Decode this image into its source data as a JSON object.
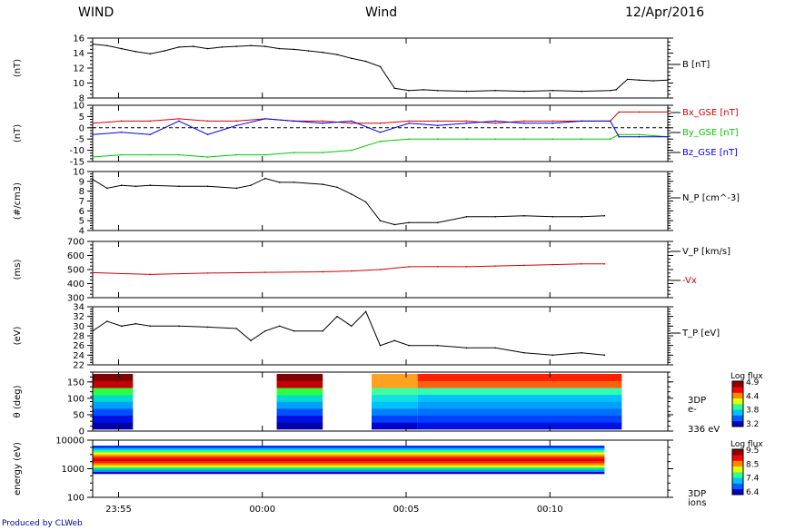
{
  "header": {
    "left_title": "WIND",
    "center_title": "Wind",
    "date": "12/Apr/2016"
  },
  "footer": {
    "credit": "Produced by CLWeb"
  },
  "time_axis": {
    "ticks": [
      {
        "t": 0,
        "label": "23:55"
      },
      {
        "t": 5,
        "label": "00:00"
      },
      {
        "t": 10,
        "label": "00:05"
      },
      {
        "t": 15,
        "label": "00:10"
      }
    ]
  },
  "chart_data": [
    {
      "type": "line",
      "panel": "B",
      "ylabel": "(nT)",
      "legend": [
        "B [nT]"
      ],
      "ylim": [
        8,
        16
      ],
      "yticks": [
        8,
        10,
        12,
        14,
        16
      ],
      "series": [
        {
          "name": "B [nT]",
          "color": "#000000",
          "x": [
            0,
            0.5,
            1,
            1.5,
            2,
            2.5,
            3,
            3.5,
            4,
            4.5,
            5,
            5.5,
            6,
            6.5,
            7,
            7.5,
            8,
            8.5,
            9,
            9.5,
            10,
            10.5,
            11,
            11.5,
            12,
            13,
            14,
            15,
            16,
            17,
            18,
            18.2,
            18.6,
            19,
            19.5,
            20
          ],
          "values": [
            15.2,
            15.0,
            14.6,
            14.2,
            13.9,
            14.3,
            14.8,
            14.9,
            14.6,
            14.8,
            14.9,
            15.0,
            14.9,
            14.6,
            14.5,
            14.3,
            14.1,
            13.8,
            13.3,
            12.9,
            12.2,
            9.3,
            9.0,
            9.1,
            9.0,
            8.9,
            9.0,
            8.9,
            9.0,
            8.9,
            9.0,
            9.1,
            10.5,
            10.4,
            10.3,
            10.4
          ]
        }
      ]
    },
    {
      "type": "line",
      "panel": "B_GSE",
      "ylabel": "(nT)",
      "legend": [
        "Bx_GSE [nT]",
        "By_GSE [nT]",
        "Bz_GSE [nT]"
      ],
      "ylim": [
        -15,
        10
      ],
      "yticks": [
        -15,
        -10,
        -5,
        0,
        5,
        10
      ],
      "series": [
        {
          "name": "Bx_GSE [nT]",
          "color": "#d40000",
          "x": [
            0,
            1,
            2,
            3,
            4,
            5,
            6,
            7,
            8,
            9,
            10,
            11,
            12,
            13,
            14,
            15,
            16,
            17,
            18,
            18.3,
            19,
            20
          ],
          "values": [
            2,
            3,
            3,
            4,
            3,
            3,
            4,
            3,
            3,
            2,
            2,
            3,
            3,
            3,
            2,
            3,
            3,
            3,
            3,
            7,
            7,
            7
          ]
        },
        {
          "name": "By_GSE [nT]",
          "color": "#00c800",
          "x": [
            0,
            1,
            2,
            3,
            4,
            5,
            6,
            7,
            8,
            9,
            10,
            11,
            12,
            13,
            14,
            15,
            16,
            17,
            18,
            18.3,
            19,
            20
          ],
          "values": [
            -13,
            -12,
            -12,
            -12,
            -13,
            -12,
            -12,
            -11,
            -11,
            -10,
            -6,
            -5,
            -5,
            -5,
            -5,
            -5,
            -5,
            -5,
            -5,
            -3,
            -3,
            -4
          ]
        },
        {
          "name": "Bz_GSE [nT]",
          "color": "#0000e0",
          "x": [
            0,
            1,
            2,
            3,
            4,
            5,
            6,
            7,
            8,
            9,
            10,
            11,
            12,
            13,
            14,
            15,
            16,
            17,
            18,
            18.3,
            19,
            20
          ],
          "values": [
            -3,
            -2,
            -3,
            3,
            -3,
            1,
            4,
            3,
            2,
            3,
            -2,
            2,
            1,
            2,
            3,
            2,
            2,
            3,
            3,
            -4,
            -4,
            -4
          ]
        }
      ]
    },
    {
      "type": "line",
      "panel": "N_P",
      "ylabel": "(#/cm3)",
      "legend": [
        "N_P [cm^-3]"
      ],
      "ylim": [
        4,
        10
      ],
      "yticks": [
        4,
        5,
        6,
        7,
        8,
        9,
        10
      ],
      "series": [
        {
          "name": "N_P [cm^-3]",
          "color": "#000000",
          "x": [
            0,
            0.5,
            1,
            1.5,
            2,
            3,
            4,
            5,
            5.5,
            6,
            6.5,
            7,
            8,
            8.5,
            9,
            9.5,
            10,
            10.5,
            11,
            12,
            13,
            14,
            15,
            16,
            17,
            17.8
          ],
          "values": [
            9.2,
            8.3,
            8.6,
            8.5,
            8.6,
            8.5,
            8.5,
            8.3,
            8.6,
            9.3,
            8.9,
            8.9,
            8.7,
            8.4,
            7.7,
            6.9,
            5.0,
            4.6,
            4.8,
            4.8,
            5.4,
            5.4,
            5.5,
            5.4,
            5.4,
            5.5
          ]
        }
      ]
    },
    {
      "type": "line",
      "panel": "V_P",
      "ylabel": "(ms)",
      "legend": [
        "V_P [km/s]",
        "-Vx"
      ],
      "ylim": [
        300,
        700
      ],
      "yticks": [
        300,
        400,
        500,
        600,
        700
      ],
      "series": [
        {
          "name": "-Vx",
          "color": "#d40000",
          "x": [
            0,
            2,
            4,
            6,
            8,
            9,
            10,
            11,
            12,
            13,
            14,
            15,
            16,
            17,
            17.8
          ],
          "values": [
            478,
            465,
            475,
            480,
            484,
            490,
            500,
            520,
            521,
            520,
            525,
            530,
            535,
            540,
            540
          ]
        }
      ]
    },
    {
      "type": "line",
      "panel": "T_P",
      "ylabel": "(eV)",
      "legend": [
        "T_P [eV]"
      ],
      "ylim": [
        22,
        34
      ],
      "yticks": [
        22,
        24,
        26,
        28,
        30,
        32,
        34
      ],
      "series": [
        {
          "name": "T_P [eV]",
          "color": "#000000",
          "x": [
            0,
            0.5,
            1,
            1.5,
            2,
            3,
            4,
            5,
            5.5,
            6,
            6.5,
            7,
            8,
            8.5,
            9,
            9.5,
            10,
            10.5,
            11,
            12,
            13,
            14,
            15,
            16,
            17,
            17.8
          ],
          "values": [
            29,
            31,
            30,
            30.5,
            30,
            30,
            29.8,
            29.5,
            27,
            29,
            30,
            29,
            29,
            32,
            30,
            33,
            26,
            27,
            26,
            26,
            25.5,
            25.5,
            24.5,
            24,
            24.5,
            24
          ]
        }
      ]
    },
    {
      "type": "heatmap",
      "panel": "3DP e-",
      "ylabel": "θ (deg)",
      "ylim": [
        0,
        180
      ],
      "yticks": [
        0,
        50,
        100,
        150
      ],
      "right_labels": [
        "3DP",
        "e-",
        "336 eV"
      ],
      "colorbar": {
        "title": "Log flux",
        "ticks": [
          "4.9",
          "4.4",
          "3.8",
          "3.2"
        ]
      },
      "bins": [
        {
          "x0": 0,
          "x1": 1.4,
          "colors": [
            "#0000aa",
            "#0010e0",
            "#0050ff",
            "#00a0ff",
            "#00ddcc",
            "#30ff40",
            "#c40000",
            "#800000"
          ]
        },
        {
          "x0": 6.4,
          "x1": 8.0,
          "colors": [
            "#0000aa",
            "#0010e0",
            "#0050ff",
            "#00a0ff",
            "#00ddcc",
            "#30ff40",
            "#c40000",
            "#800000"
          ]
        },
        {
          "x0": 9.7,
          "x1": 11.3,
          "colors": [
            "#0000cc",
            "#0040ff",
            "#0080ff",
            "#00c0ff",
            "#10e0e0",
            "#40ffa0",
            "#ffa020",
            "#ffa020"
          ]
        },
        {
          "x0": 11.3,
          "x1": 18.4,
          "colors": [
            "#0010e0",
            "#0040ff",
            "#0070ff",
            "#00a0ff",
            "#00c0ff",
            "#30ffb0",
            "#ff6010",
            "#ff2000"
          ]
        }
      ]
    },
    {
      "type": "heatmap",
      "panel": "3DP ions",
      "ylabel": "energy (eV)",
      "ylim": [
        100,
        10000
      ],
      "yscale": "log",
      "yticks": [
        100,
        1000,
        10000
      ],
      "right_labels": [
        "3DP",
        "ions"
      ],
      "colorbar": {
        "title": "Log flux",
        "ticks": [
          "9.5",
          "8.5",
          "7.4",
          "6.4"
        ]
      },
      "bins": [
        {
          "x0": 0,
          "x1": 17.8,
          "colors": [
            "#0000cc",
            "#00a0ff",
            "#00ee88",
            "#e8ff00",
            "#ff8800",
            "#ff2000",
            "#d40000",
            "#ff2000",
            "#ff9000",
            "#f0ff00",
            "#30ff90",
            "#00c0ff",
            "#0030ff"
          ]
        }
      ]
    }
  ]
}
